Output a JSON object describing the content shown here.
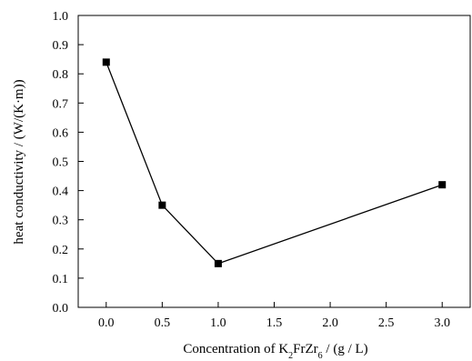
{
  "chart_data": {
    "type": "line",
    "x": [
      0.0,
      0.5,
      1.0,
      3.0
    ],
    "series": [
      {
        "values": [
          0.84,
          0.35,
          0.15,
          0.42
        ]
      }
    ],
    "xlabel": {
      "prefix": "Concentration of K",
      "sub1": "2",
      "middle": "FrZr",
      "sub2": "6",
      "suffix": " / (g / L)"
    },
    "ylabel": "heat conductivity / (W/(K·m))",
    "xlim": [
      -0.25,
      3.25
    ],
    "ylim": [
      0.0,
      1.0
    ],
    "x_ticks": [
      "0.0",
      "0.5",
      "1.0",
      "1.5",
      "2.0",
      "2.5",
      "3.0"
    ],
    "x_tick_values": [
      0.0,
      0.5,
      1.0,
      1.5,
      2.0,
      2.5,
      3.0
    ],
    "y_ticks": [
      "0.0",
      "0.1",
      "0.2",
      "0.3",
      "0.4",
      "0.5",
      "0.6",
      "0.7",
      "0.8",
      "0.9",
      "1.0"
    ],
    "y_tick_values": [
      0.0,
      0.1,
      0.2,
      0.3,
      0.4,
      0.5,
      0.6,
      0.7,
      0.8,
      0.9,
      1.0
    ],
    "grid": false,
    "marker": "square",
    "colors": {
      "line": "#000000",
      "marker": "#000000",
      "axis": "#000000"
    }
  }
}
